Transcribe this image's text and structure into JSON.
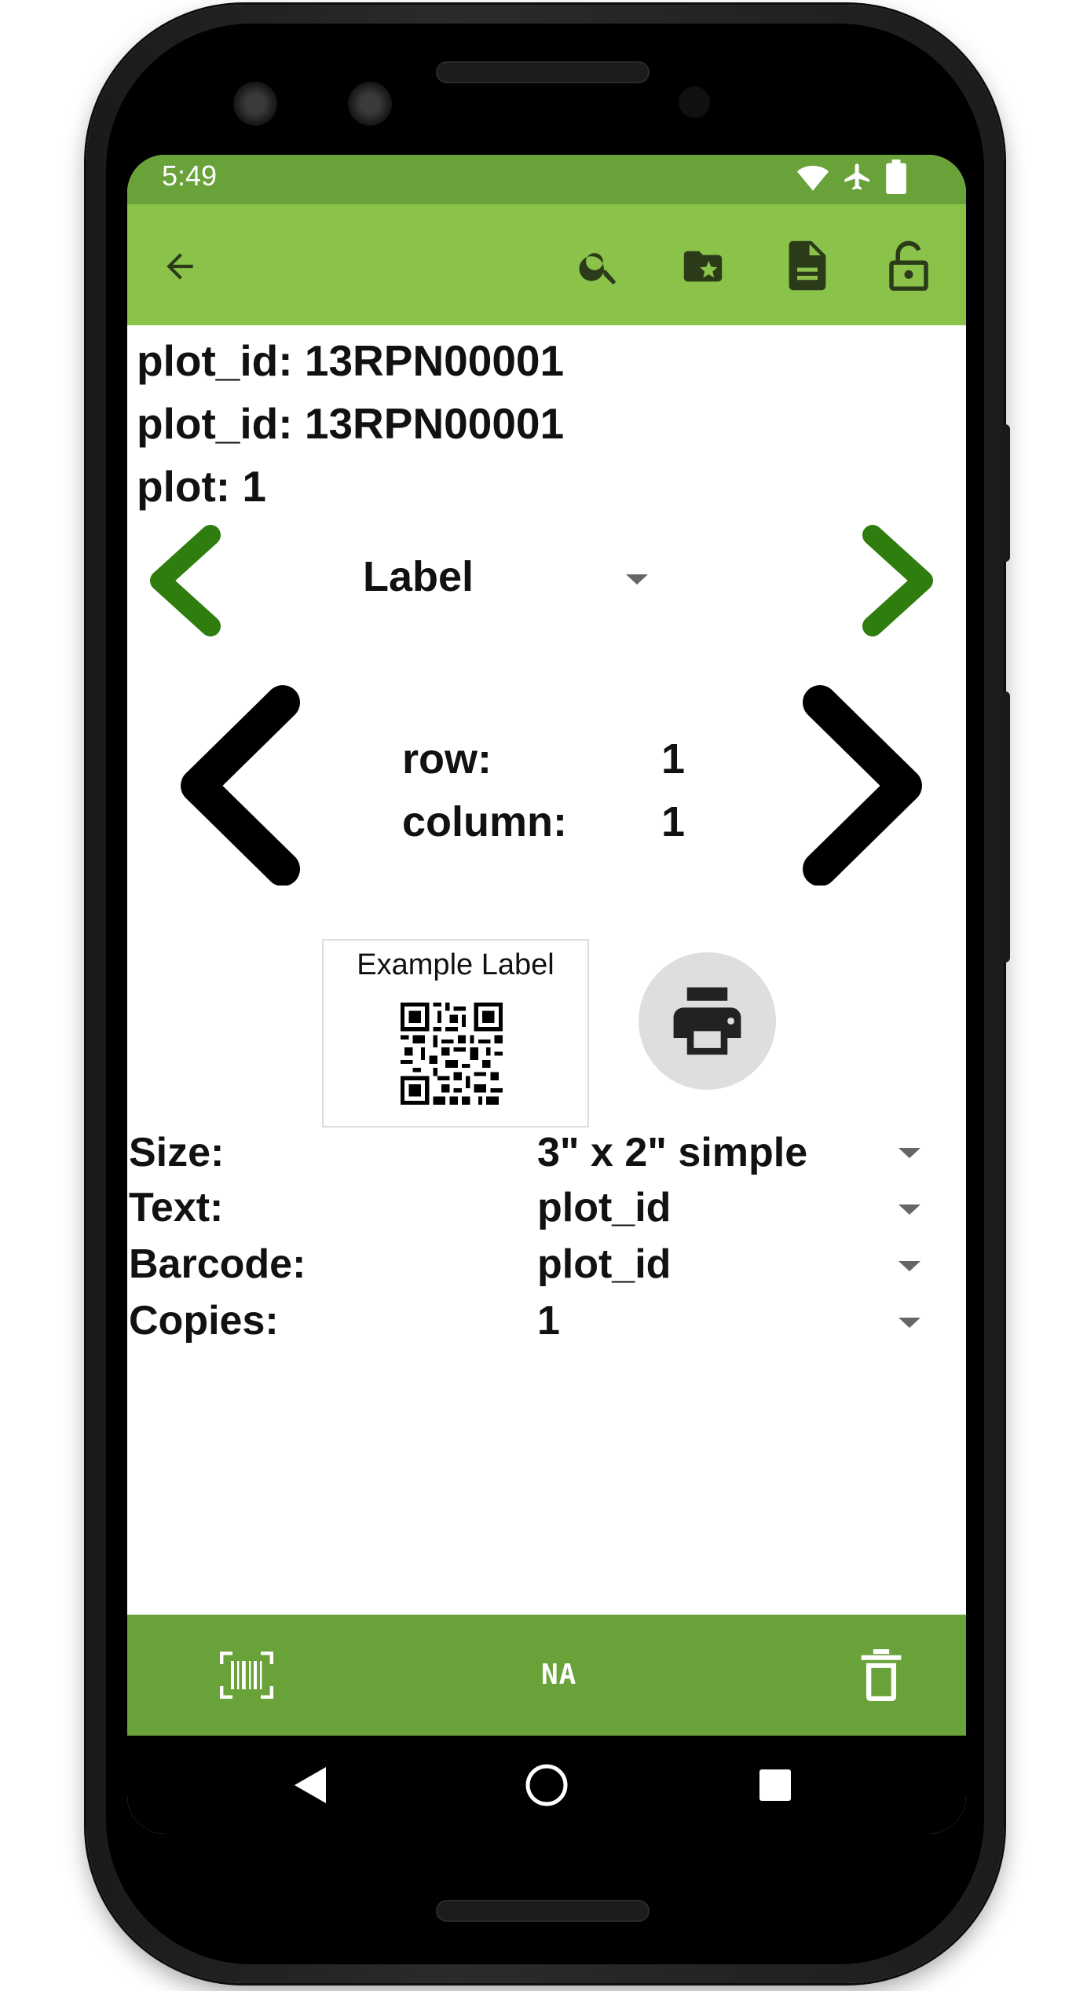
{
  "status_bar": {
    "time": "5:49",
    "icons": [
      "wifi-icon",
      "airplane-icon",
      "battery-icon"
    ]
  },
  "app_bar": {
    "icons": [
      "back-arrow-icon",
      "search-icon",
      "folder-star-icon",
      "document-icon",
      "lock-open-icon"
    ]
  },
  "info": {
    "line1": {
      "key": "plot_id:",
      "value": "13RPN00001"
    },
    "line2": {
      "key": "plot_id:",
      "value": "13RPN00001"
    },
    "line3": {
      "key": "plot:",
      "value": "1"
    }
  },
  "label_selector": {
    "value": "Label"
  },
  "position": {
    "row_label": "row:",
    "row_value": "1",
    "column_label": "column:",
    "column_value": "1"
  },
  "preview": {
    "title": "Example Label"
  },
  "options": {
    "size": {
      "label": "Size:",
      "value": "3\" x 2\" simple"
    },
    "text": {
      "label": "Text:",
      "value": "plot_id"
    },
    "barcode": {
      "label": "Barcode:",
      "value": "plot_id"
    },
    "copies": {
      "label": "Copies:",
      "value": "1"
    }
  },
  "bottom_bar": {
    "na_label": "NA",
    "icons": [
      "barcode-scan-icon",
      "delete-icon"
    ]
  },
  "colors": {
    "status_bar": "#6aa23a",
    "app_bar": "#8bc34a",
    "bottom_bar": "#6aa23a",
    "green_arrow": "#2e7d0e"
  }
}
